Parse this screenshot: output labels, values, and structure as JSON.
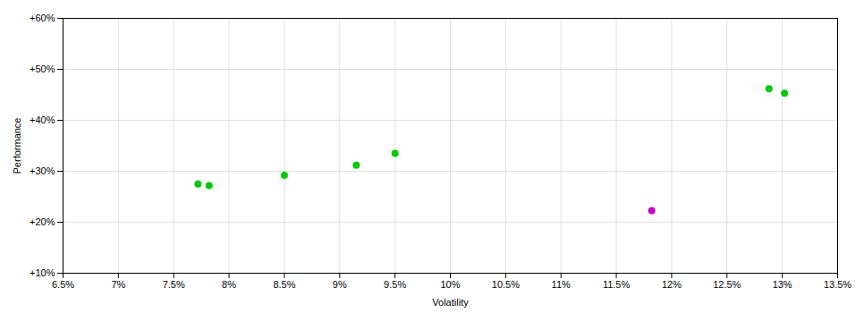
{
  "chart_data": {
    "type": "scatter",
    "xlabel": "Volatility",
    "ylabel": "Performance",
    "series": [
      {
        "color": "#00cc00",
        "x": [
          7.72,
          7.82,
          8.5,
          9.15,
          9.5,
          12.88,
          13.02
        ],
        "values": [
          27.5,
          27.2,
          29.2,
          31.2,
          33.5,
          46.2,
          45.3
        ]
      },
      {
        "color": "#cc00cc",
        "x": [
          11.82
        ],
        "values": [
          22.3
        ]
      }
    ],
    "xlim": [
      6.5,
      13.5
    ],
    "ylim": [
      10.0,
      60.0
    ],
    "xticks": [
      {
        "value": 6.5,
        "label": "6.5%"
      },
      {
        "value": 7.0,
        "label": "7%"
      },
      {
        "value": 7.5,
        "label": "7.5%"
      },
      {
        "value": 8.0,
        "label": "8%"
      },
      {
        "value": 8.5,
        "label": "8.5%"
      },
      {
        "value": 9.0,
        "label": "9%"
      },
      {
        "value": 9.5,
        "label": "9.5%"
      },
      {
        "value": 10.0,
        "label": "10%"
      },
      {
        "value": 10.5,
        "label": "10.5%"
      },
      {
        "value": 11.0,
        "label": "11%"
      },
      {
        "value": 11.5,
        "label": "11.5%"
      },
      {
        "value": 12.0,
        "label": "12%"
      },
      {
        "value": 12.5,
        "label": "12.5%"
      },
      {
        "value": 13.0,
        "label": "13%"
      },
      {
        "value": 13.5,
        "label": "13.5%"
      }
    ],
    "yticks": [
      {
        "value": 10,
        "label": "+10%"
      },
      {
        "value": 20,
        "label": "+20%"
      },
      {
        "value": 30,
        "label": "+30%"
      },
      {
        "value": 40,
        "label": "+40%"
      },
      {
        "value": 50,
        "label": "+50%"
      },
      {
        "value": 60,
        "label": "+60%"
      }
    ],
    "grid": true
  }
}
